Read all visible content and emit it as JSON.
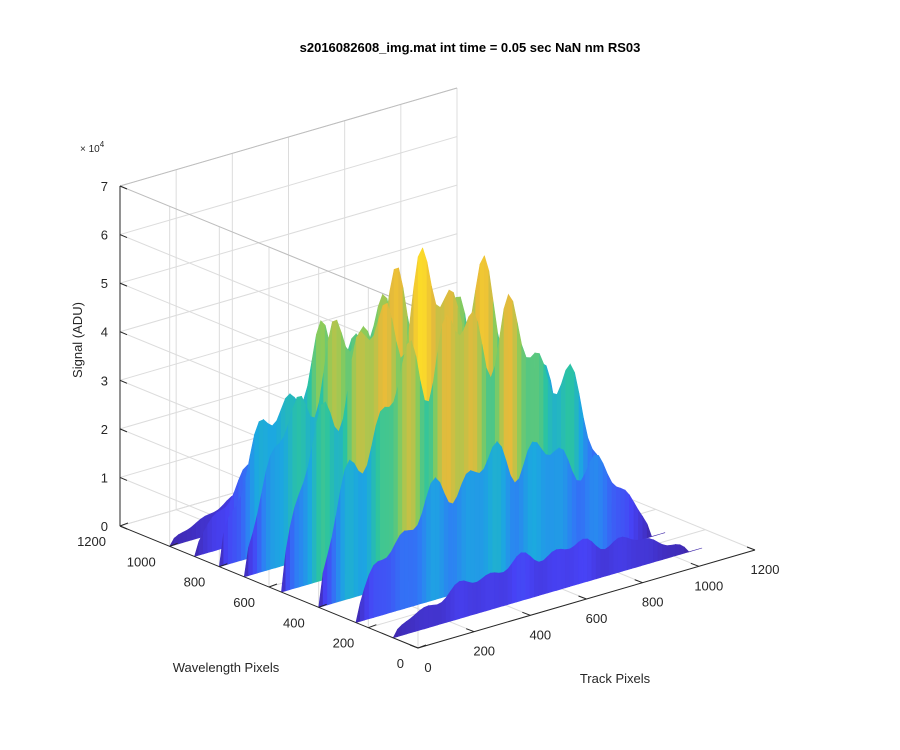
{
  "chart_data": {
    "type": "surface",
    "title": "s2016082608_img.mat int time = 0.05 sec  NaN nm RS03",
    "xlabel": "Track Pixels",
    "ylabel": "Wavelength Pixels",
    "zlabel": "Signal (ADU)",
    "z_multiplier_label": "× 10",
    "z_multiplier_exponent": "4",
    "xlim": [
      0,
      1200
    ],
    "ylim": [
      0,
      1200
    ],
    "zlim": [
      0,
      70000
    ],
    "x_ticks": [
      "0",
      "200",
      "400",
      "600",
      "800",
      "1000",
      "1200"
    ],
    "y_ticks": [
      "0",
      "200",
      "400",
      "600",
      "800",
      "1000",
      "1200"
    ],
    "z_ticks": [
      "0",
      "1",
      "2",
      "3",
      "4",
      "5",
      "6",
      "7"
    ],
    "grid": true,
    "colormap": [
      "#3e26a8",
      "#4742f5",
      "#2f7cf5",
      "#1ca8e0",
      "#2cc4a0",
      "#8ccb5a",
      "#e8ba3a",
      "#fbd82a",
      "#f9fb15"
    ],
    "data_extent": {
      "x": [
        0,
        1100
      ],
      "y": [
        0,
        1000
      ]
    },
    "ridges": [
      {
        "wavelength_pixel": 1000,
        "peak_signal": 9000
      },
      {
        "wavelength_pixel": 900,
        "peak_signal": 23000
      },
      {
        "wavelength_pixel": 800,
        "peak_signal": 48000
      },
      {
        "wavelength_pixel": 700,
        "peak_signal": 55000
      },
      {
        "wavelength_pixel": 550,
        "peak_signal": 64000
      },
      {
        "wavelength_pixel": 400,
        "peak_signal": 58000
      },
      {
        "wavelength_pixel": 250,
        "peak_signal": 30000
      },
      {
        "wavelength_pixel": 100,
        "peak_signal": 10000
      }
    ]
  }
}
